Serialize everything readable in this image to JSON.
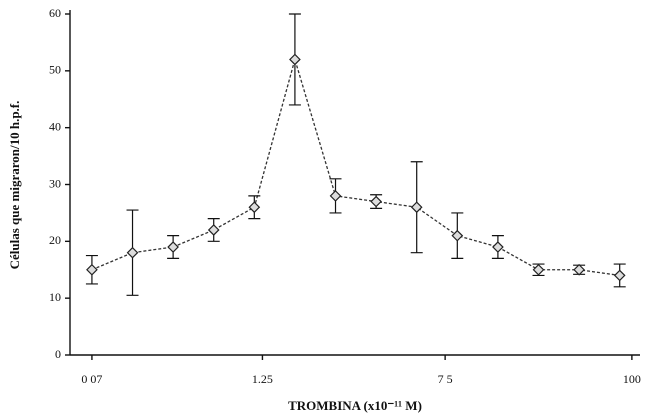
{
  "chart_data": {
    "type": "line",
    "x_label": "TROMBINA (x10⁻¹¹ M)",
    "y_label": "Células que migraron/10 h.p.f.",
    "x": [
      0,
      1,
      2,
      3,
      4,
      5,
      6,
      7,
      8,
      9,
      10,
      11,
      12,
      13
    ],
    "values": [
      15,
      18,
      19,
      22,
      26,
      52,
      28,
      27,
      26,
      21,
      19,
      15,
      15,
      14
    ],
    "errors": [
      2.5,
      7.5,
      2,
      2,
      2,
      8,
      3,
      1.2,
      8,
      4,
      2,
      1,
      0.8,
      2
    ],
    "color": "#333333",
    "xlim": [
      -0.54,
      13.5
    ],
    "xticks": [
      {
        "value": 0,
        "label": "0 07"
      },
      {
        "value": 4.2,
        "label": "1.25"
      },
      {
        "value": 8.7,
        "label": "7 5"
      },
      {
        "value": 13.3,
        "label": "100"
      }
    ],
    "ylim": [
      0,
      60
    ],
    "yticks": [
      0,
      10,
      20,
      30,
      40,
      50,
      60
    ]
  }
}
